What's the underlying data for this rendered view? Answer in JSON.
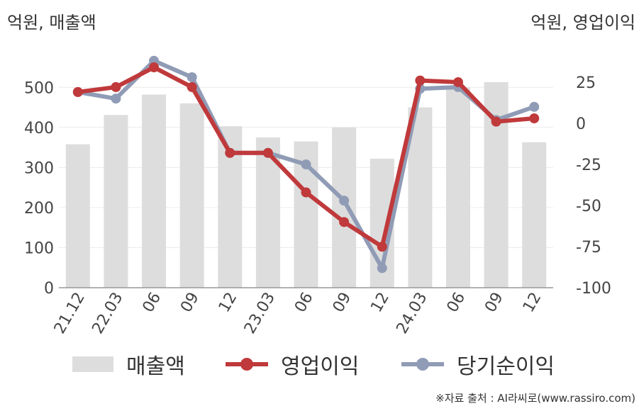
{
  "units": {
    "left": "억원, 매출액",
    "right": "억원, 영업이익"
  },
  "source": "※자료 출처 : AI라씨로(www.rassiro.com)",
  "chart_data": {
    "type": "bar+line",
    "categories": [
      "21.12",
      "22.03",
      "06",
      "09",
      "12",
      "23.03",
      "06",
      "09",
      "12",
      "24.03",
      "06",
      "09",
      "12"
    ],
    "series": [
      {
        "name": "매출액",
        "type": "bar",
        "axis": "left",
        "color": "#dddddd",
        "values": [
          358,
          431,
          482,
          460,
          403,
          375,
          365,
          400,
          322,
          450,
          500,
          513,
          363
        ]
      },
      {
        "name": "영업이익",
        "type": "line",
        "axis": "right",
        "color": "#c0393b",
        "values": [
          19,
          22,
          34,
          22,
          -18,
          -18,
          -42,
          -60,
          -75,
          26,
          25,
          1,
          3
        ]
      },
      {
        "name": "당기순이익",
        "type": "line",
        "axis": "right",
        "color": "#909cb6",
        "values": [
          19,
          15,
          38,
          28,
          -18,
          -18,
          -25,
          -47,
          -88,
          21,
          22,
          2,
          10
        ]
      }
    ],
    "left_axis": {
      "ylim": [
        0,
        560
      ],
      "ticks": [
        "0",
        "100",
        "200",
        "300",
        "400",
        "500"
      ]
    },
    "right_axis": {
      "ylim": [
        -100,
        40
      ],
      "ticks": [
        "-100",
        "-75",
        "-50",
        "-25",
        "0",
        "25"
      ]
    },
    "grid": true,
    "legend": "bottom"
  }
}
